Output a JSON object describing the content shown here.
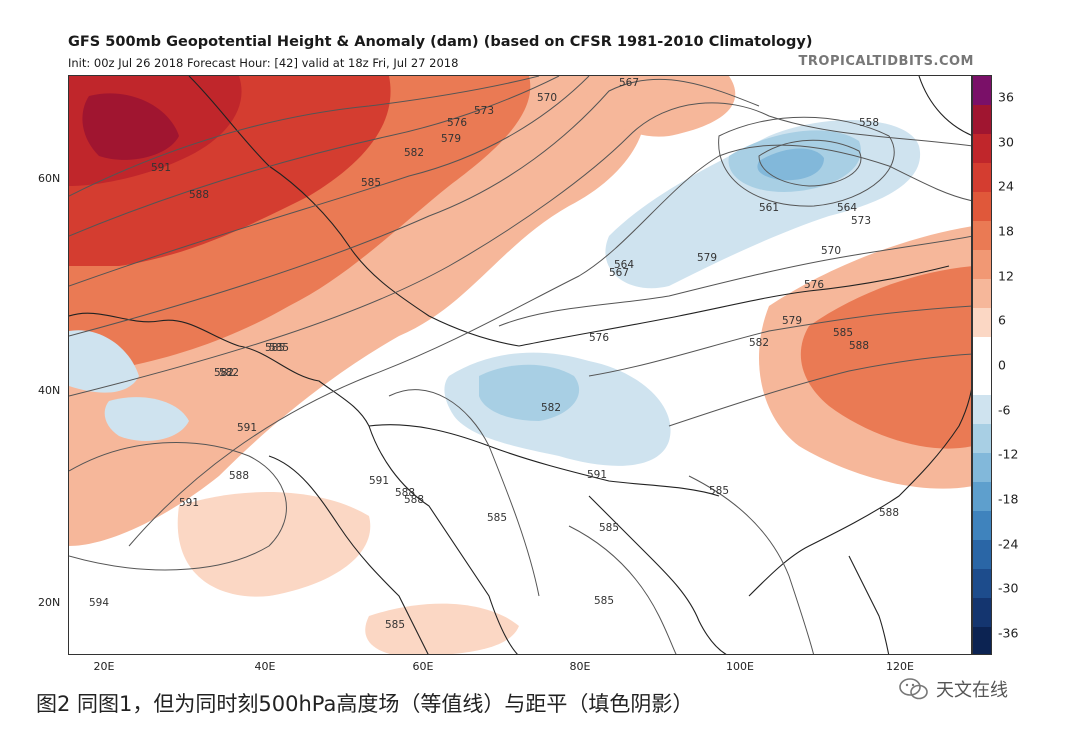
{
  "header": {
    "title": "GFS 500mb Geopotential Height & Anomaly (dam) (based on CFSR 1981-2010 Climatology)",
    "subtitle": "Init: 00z Jul 26 2018   Forecast Hour: [42]   valid at 18z Fri, Jul 27 2018",
    "brand": "TROPICALTIDBITS.COM"
  },
  "axes": {
    "lat_labels": [
      "60N",
      "40N",
      "20N"
    ],
    "lon_labels": [
      "20E",
      "40E",
      "60E",
      "80E",
      "100E",
      "120E"
    ]
  },
  "colorbar": {
    "ticks": [
      "36",
      "30",
      "24",
      "18",
      "12",
      "6",
      "0",
      "-6",
      "-12",
      "-18",
      "-24",
      "-30",
      "-36"
    ],
    "colors": [
      "#7a1068",
      "#a01530",
      "#c0262b",
      "#d43d30",
      "#e0583a",
      "#ea7a54",
      "#f19874",
      "#f6b79a",
      "#fbd7c4",
      "#ffffff",
      "#ffffff",
      "#cfe3ef",
      "#a8cfe4",
      "#82b8da",
      "#5e9fcd",
      "#3f83bd",
      "#2a66a6",
      "#1d4c8c",
      "#14356f",
      "#0c2352"
    ]
  },
  "contour_labels": [
    "567",
    "570",
    "573",
    "576",
    "579",
    "582",
    "585",
    "588",
    "591",
    "594",
    "558",
    "561",
    "564"
  ],
  "caption": "图2  同图1，但为同时刻500hPa高度场（等值线）与距平（填色阴影）",
  "watermark": {
    "text": "天文在线",
    "icon": "wechat-icon"
  }
}
